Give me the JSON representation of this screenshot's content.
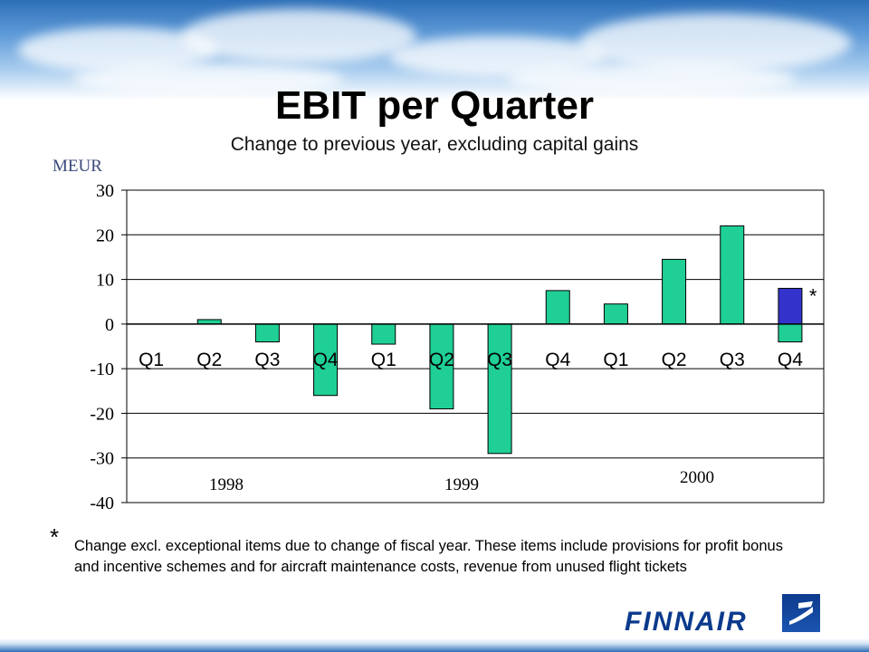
{
  "chart_data": {
    "type": "bar",
    "title": "EBIT per Quarter",
    "subtitle": "Change to previous year, excluding capital gains",
    "ylabel": "MEUR",
    "ylim": [
      -40,
      30
    ],
    "yticks": [
      30,
      20,
      10,
      0,
      -10,
      -20,
      -30,
      -40
    ],
    "grid": true,
    "categories": [
      "Q1",
      "Q2",
      "Q3",
      "Q4",
      "Q1",
      "Q2",
      "Q3",
      "Q4",
      "Q1",
      "Q2",
      "Q3",
      "Q4"
    ],
    "year_labels": [
      {
        "label": "1998",
        "start_index": 0
      },
      {
        "label": "1999",
        "start_index": 4
      },
      {
        "label": "2000",
        "start_index": 8
      }
    ],
    "values": [
      0,
      1,
      -4,
      -16,
      -4.5,
      -19,
      -29,
      7.5,
      4.5,
      14.5,
      22,
      -4
    ],
    "additional_bar": {
      "index": 11,
      "value": 8,
      "marker": "*"
    },
    "colors": {
      "bar": "#1fcf96",
      "additional_bar": "#3333cc",
      "bar_outline": "#000000",
      "grid": "#000000"
    }
  },
  "footnote": {
    "marker": "*",
    "text": "Change excl. exceptional items due to change of fiscal year. These items include provisions for profit bonus and incentive schemes and for aircraft maintenance costs, revenue from unused flight tickets"
  },
  "logo": {
    "text": "FINNAIR"
  }
}
